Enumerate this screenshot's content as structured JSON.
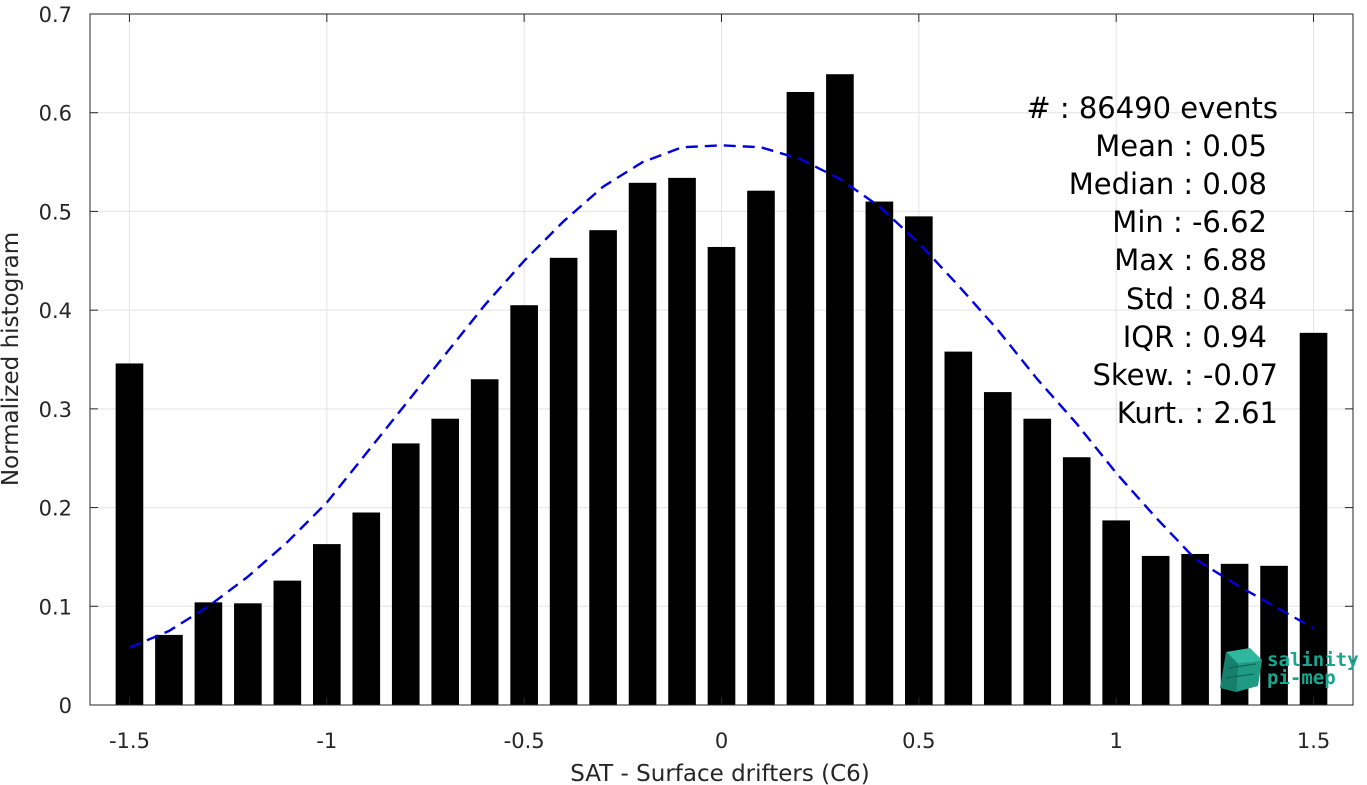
{
  "chart_data": {
    "type": "bar",
    "xlabel": "SAT - Surface drifters (C6)",
    "ylabel": "Normalized histogram",
    "xlim": [
      -1.6,
      1.6
    ],
    "ylim": [
      0,
      0.7
    ],
    "bar_width": 0.07,
    "grid": true,
    "x_ticks": [
      -1.5,
      -1,
      -0.5,
      0,
      0.5,
      1,
      1.5
    ],
    "x_tick_labels": [
      "-1.5",
      "-1",
      "-0.5",
      "0",
      "0.5",
      "1",
      "1.5"
    ],
    "y_ticks": [
      0,
      0.1,
      0.2,
      0.3,
      0.4,
      0.5,
      0.6,
      0.7
    ],
    "y_tick_labels": [
      "0",
      "0.1",
      "0.2",
      "0.3",
      "0.4",
      "0.5",
      "0.6",
      "0.7"
    ],
    "bars": {
      "x": [
        -1.5,
        -1.4,
        -1.3,
        -1.2,
        -1.1,
        -1.0,
        -0.9,
        -0.8,
        -0.7,
        -0.6,
        -0.5,
        -0.4,
        -0.3,
        -0.2,
        -0.1,
        0.0,
        0.1,
        0.2,
        0.3,
        0.4,
        0.5,
        0.6,
        0.7,
        0.8,
        0.9,
        1.0,
        1.1,
        1.2,
        1.3,
        1.4,
        1.5
      ],
      "values": [
        0.346,
        0.071,
        0.104,
        0.103,
        0.126,
        0.163,
        0.195,
        0.265,
        0.29,
        0.33,
        0.405,
        0.453,
        0.481,
        0.529,
        0.534,
        0.464,
        0.521,
        0.621,
        0.639,
        0.51,
        0.495,
        0.358,
        0.317,
        0.29,
        0.251,
        0.187,
        0.151,
        0.153,
        0.143,
        0.141,
        0.377
      ],
      "color": "#000000"
    },
    "fit_curve": {
      "style": "dashed",
      "color": "#0000dd",
      "x": [
        -1.5,
        -1.4,
        -1.3,
        -1.2,
        -1.1,
        -1.0,
        -0.9,
        -0.8,
        -0.7,
        -0.6,
        -0.5,
        -0.4,
        -0.3,
        -0.2,
        -0.1,
        0.0,
        0.1,
        0.2,
        0.3,
        0.4,
        0.5,
        0.6,
        0.7,
        0.8,
        0.9,
        1.0,
        1.1,
        1.2,
        1.3,
        1.4,
        1.5
      ],
      "y": [
        0.058,
        0.075,
        0.1,
        0.13,
        0.165,
        0.205,
        0.255,
        0.305,
        0.355,
        0.405,
        0.45,
        0.49,
        0.525,
        0.55,
        0.565,
        0.567,
        0.565,
        0.553,
        0.533,
        0.505,
        0.468,
        0.425,
        0.38,
        0.33,
        0.285,
        0.235,
        0.19,
        0.148,
        0.123,
        0.1,
        0.078
      ]
    },
    "stats": {
      "count": "#  : 86490 events",
      "mean": "Mean : 0.05",
      "median": "Median : 0.08",
      "min": "Min : -6.62",
      "max": "Max : 6.88",
      "std": "Std : 0.84",
      "iqr": "IQR : 0.94",
      "skew": "Skew. : -0.07",
      "kurt": "Kurt. : 2.61"
    }
  },
  "logo": {
    "line1": "salinity",
    "line2": "pi-mep",
    "color": "#1aa58f"
  }
}
